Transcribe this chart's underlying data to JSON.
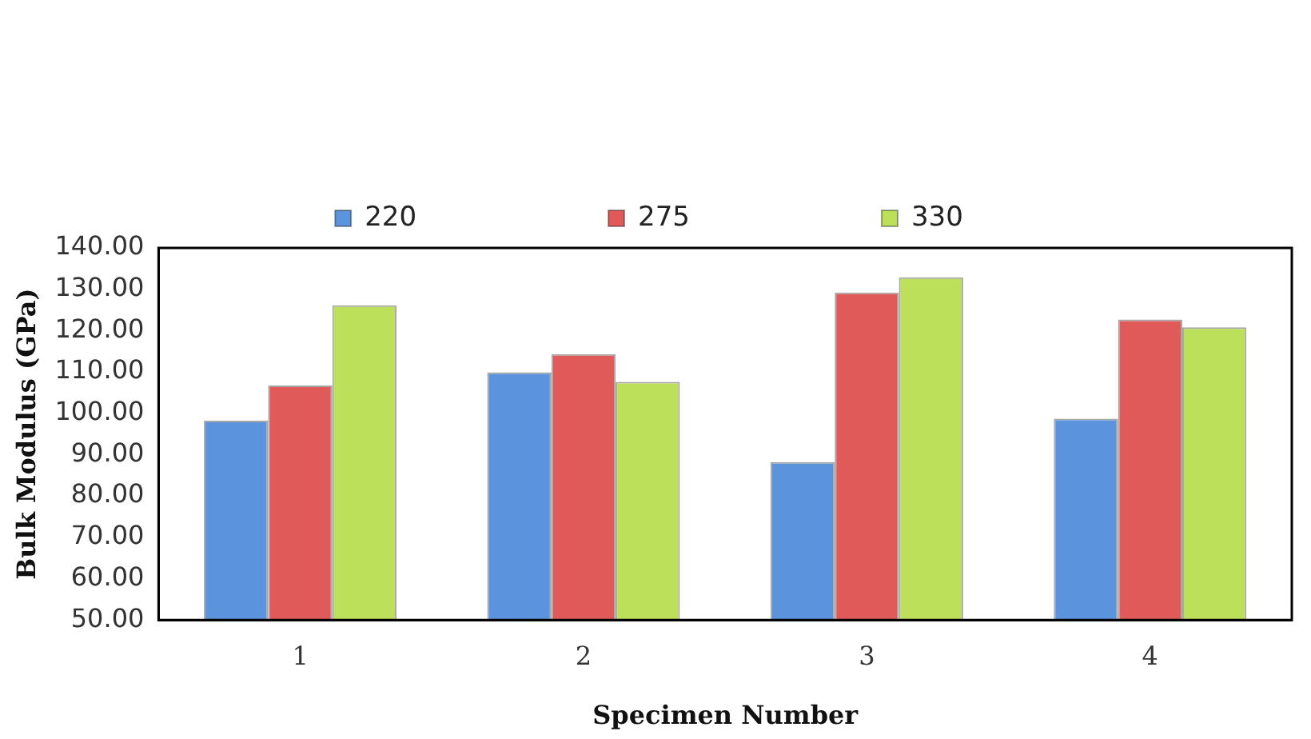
{
  "chart_data": {
    "type": "bar",
    "xlabel": "Specimen Number",
    "ylabel": "Bulk Modulus (GPa)",
    "categories": [
      "1",
      "2",
      "3",
      "4"
    ],
    "series": [
      {
        "name": "220",
        "color": "#5b93dc",
        "values": [
          98.2,
          109.9,
          88.2,
          98.7
        ]
      },
      {
        "name": "275",
        "color": "#e05a5a",
        "values": [
          106.7,
          114.3,
          129.2,
          122.7
        ]
      },
      {
        "name": "330",
        "color": "#bde05a",
        "values": [
          126.1,
          107.6,
          132.9,
          120.8
        ]
      }
    ],
    "ylim": [
      50,
      140
    ],
    "yticks": [
      {
        "value": 50,
        "label": "50.00"
      },
      {
        "value": 60,
        "label": "60.00"
      },
      {
        "value": 70,
        "label": "70.00"
      },
      {
        "value": 80,
        "label": "80.00"
      },
      {
        "value": 90,
        "label": "90.00"
      },
      {
        "value": 100,
        "label": "100.00"
      },
      {
        "value": 110,
        "label": "110.00"
      },
      {
        "value": 120,
        "label": "120.00"
      },
      {
        "value": 130,
        "label": "130.00"
      },
      {
        "value": 140,
        "label": "140.00"
      }
    ],
    "grid": false,
    "legend": "top"
  }
}
